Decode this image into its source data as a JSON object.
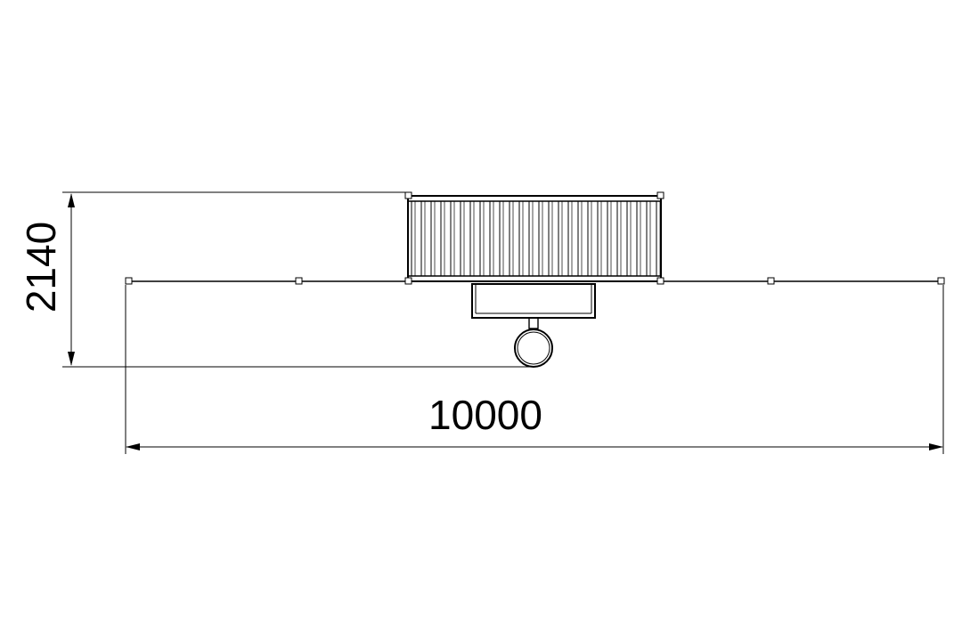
{
  "drawing": {
    "type": "technical-plan-view",
    "line_color": "#000000",
    "background": "#ffffff"
  },
  "dimensions": {
    "height_label": "2140",
    "width_label": "10000"
  }
}
